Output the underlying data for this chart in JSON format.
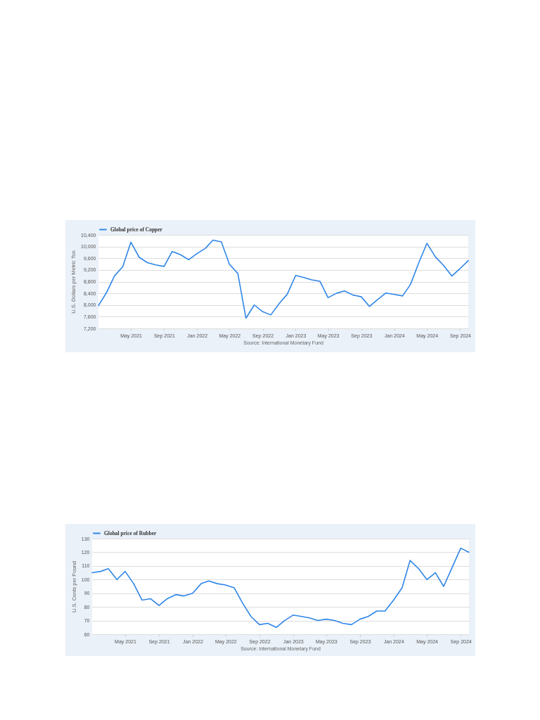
{
  "chart_data": [
    {
      "type": "line",
      "ylabel": "U.S. Dollars per Metric Ton",
      "annotations": [
        "Source: International Monetary Fund"
      ],
      "x": [
        "2021-01",
        "2021-02",
        "2021-03",
        "2021-04",
        "2021-05",
        "2021-06",
        "2021-07",
        "2021-08",
        "2021-09",
        "2021-10",
        "2021-11",
        "2021-12",
        "2022-01",
        "2022-02",
        "2022-03",
        "2022-04",
        "2022-05",
        "2022-06",
        "2022-07",
        "2022-08",
        "2022-09",
        "2022-10",
        "2022-11",
        "2022-12",
        "2023-01",
        "2023-02",
        "2023-03",
        "2023-04",
        "2023-05",
        "2023-06",
        "2023-07",
        "2023-08",
        "2023-09",
        "2023-10",
        "2023-11",
        "2023-12",
        "2024-01",
        "2024-02",
        "2024-03",
        "2024-04",
        "2024-05",
        "2024-06",
        "2024-07",
        "2024-08",
        "2024-09",
        "2024-10"
      ],
      "series": [
        {
          "name": "Global price of Copper",
          "color": "#2f86e8",
          "values": [
            7980,
            8440,
            8990,
            9310,
            10150,
            9630,
            9450,
            9370,
            9320,
            9830,
            9720,
            9550,
            9760,
            9940,
            10220,
            10160,
            9390,
            9080,
            7550,
            8000,
            7770,
            7660,
            8050,
            8370,
            9010,
            8940,
            8860,
            8810,
            8250,
            8400,
            8480,
            8340,
            8280,
            7950,
            8190,
            8410,
            8360,
            8310,
            8700,
            9450,
            10110,
            9650,
            9360,
            8990,
            9250,
            9520
          ]
        }
      ],
      "xlim": [
        "2021-01",
        "2024-10"
      ],
      "xticks": [
        {
          "value": "2021-05",
          "label": "May 2021"
        },
        {
          "value": "2021-09",
          "label": "Sep 2021"
        },
        {
          "value": "2022-01",
          "label": "Jan 2022"
        },
        {
          "value": "2022-05",
          "label": "May 2022"
        },
        {
          "value": "2022-09",
          "label": "Sep 2022"
        },
        {
          "value": "2023-01",
          "label": "Jan 2023"
        },
        {
          "value": "2023-05",
          "label": "May 2023"
        },
        {
          "value": "2023-09",
          "label": "Sep 2023"
        },
        {
          "value": "2024-01",
          "label": "Jan 2024"
        },
        {
          "value": "2024-05",
          "label": "May 2024"
        },
        {
          "value": "2024-09",
          "label": "Sep 2024"
        }
      ],
      "ylim": [
        7200,
        10400
      ],
      "yticks": [
        {
          "value": 7200,
          "label": "7,200"
        },
        {
          "value": 7600,
          "label": "7,600"
        },
        {
          "value": 8000,
          "label": "8,000"
        },
        {
          "value": 8400,
          "label": "8,400"
        },
        {
          "value": 8800,
          "label": "8,800"
        },
        {
          "value": 9200,
          "label": "9,200"
        },
        {
          "value": 9600,
          "label": "9,600"
        },
        {
          "value": 10000,
          "label": "10,000"
        },
        {
          "value": 10400,
          "label": "10,400"
        }
      ],
      "grid": "y",
      "legend": "top left"
    },
    {
      "type": "line",
      "ylabel": "U.S. Cents per Pound",
      "annotations": [
        "Source: International Monetary Fund"
      ],
      "x": [
        "2021-01",
        "2021-02",
        "2021-03",
        "2021-04",
        "2021-05",
        "2021-06",
        "2021-07",
        "2021-08",
        "2021-09",
        "2021-10",
        "2021-11",
        "2021-12",
        "2022-01",
        "2022-02",
        "2022-03",
        "2022-04",
        "2022-05",
        "2022-06",
        "2022-07",
        "2022-08",
        "2022-09",
        "2022-10",
        "2022-11",
        "2022-12",
        "2023-01",
        "2023-02",
        "2023-03",
        "2023-04",
        "2023-05",
        "2023-06",
        "2023-07",
        "2023-08",
        "2023-09",
        "2023-10",
        "2023-11",
        "2023-12",
        "2024-01",
        "2024-02",
        "2024-03",
        "2024-04",
        "2024-05",
        "2024-06",
        "2024-07",
        "2024-08",
        "2024-09",
        "2024-10"
      ],
      "series": [
        {
          "name": "Global price of Rubber",
          "color": "#2f86e8",
          "values": [
            105,
            106,
            108,
            100,
            106,
            97,
            85,
            86,
            81,
            86,
            89,
            88,
            90,
            97,
            99,
            97,
            96,
            94,
            83,
            73,
            67,
            68,
            65,
            70,
            74,
            73,
            72,
            70,
            71,
            70,
            68,
            67,
            71,
            73,
            77,
            77,
            85,
            94,
            114,
            108,
            100,
            105,
            95,
            109,
            123,
            120
          ]
        }
      ],
      "xlim": [
        "2021-01",
        "2024-10"
      ],
      "xticks": [
        {
          "value": "2021-05",
          "label": "May 2021"
        },
        {
          "value": "2021-09",
          "label": "Sep 2021"
        },
        {
          "value": "2022-01",
          "label": "Jan 2022"
        },
        {
          "value": "2022-05",
          "label": "May 2022"
        },
        {
          "value": "2022-09",
          "label": "Sep 2022"
        },
        {
          "value": "2023-01",
          "label": "Jan 2023"
        },
        {
          "value": "2023-05",
          "label": "May 2023"
        },
        {
          "value": "2023-09",
          "label": "Sep 2023"
        },
        {
          "value": "2024-01",
          "label": "Jan 2024"
        },
        {
          "value": "2024-05",
          "label": "May 2024"
        },
        {
          "value": "2024-09",
          "label": "Sep 2024"
        }
      ],
      "ylim": [
        60,
        130
      ],
      "yticks": [
        60,
        70,
        80,
        90,
        100,
        110,
        120,
        130
      ],
      "grid": "y",
      "legend": "top left"
    }
  ]
}
